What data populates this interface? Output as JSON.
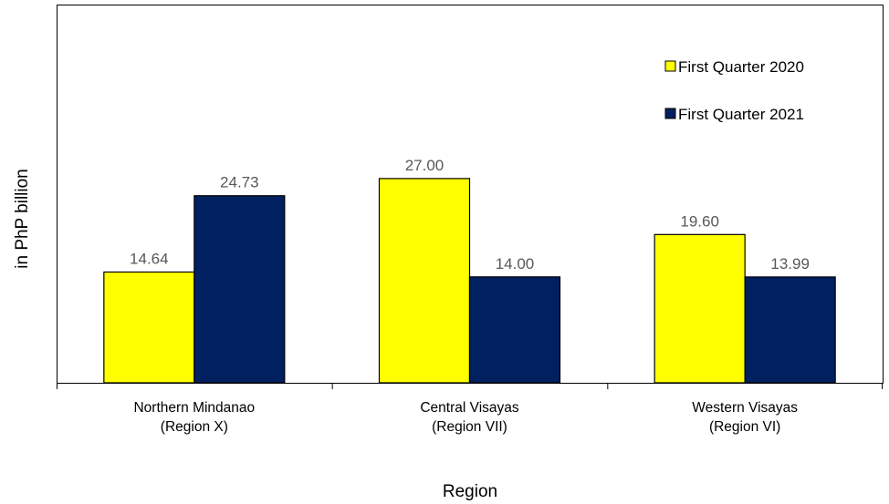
{
  "chart_data": {
    "type": "bar",
    "categories": [
      [
        "Northern Mindanao",
        "(Region X)"
      ],
      [
        "Central Visayas",
        "(Region VII)"
      ],
      [
        "Western Visayas",
        "(Region VI)"
      ]
    ],
    "series": [
      {
        "name": "First Quarter 2020",
        "color": "#ffff00",
        "values": [
          14.64,
          27.0,
          19.6
        ],
        "labels": [
          "14.64",
          "27.00",
          "19.60"
        ]
      },
      {
        "name": "First Quarter 2021",
        "color": "#002060",
        "values": [
          24.73,
          14.0,
          13.99
        ],
        "labels": [
          "24.73",
          "14.00",
          "13.99"
        ]
      }
    ],
    "xlabel": "Region",
    "ylabel": "in PhP billion",
    "ylim": [
      0,
      50
    ],
    "grid": false,
    "legend_position": "top-right"
  }
}
